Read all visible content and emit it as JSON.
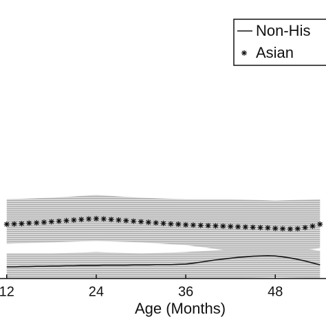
{
  "chart_data": {
    "type": "line",
    "xlabel": "Age (Months)",
    "x": [
      12,
      13,
      14,
      15,
      16,
      17,
      18,
      19,
      20,
      21,
      22,
      23,
      24,
      25,
      26,
      27,
      28,
      29,
      30,
      31,
      32,
      33,
      34,
      35,
      36,
      37,
      38,
      39,
      40,
      41,
      42,
      43,
      44,
      45,
      46,
      47,
      48,
      49,
      50,
      51,
      52,
      53,
      54
    ],
    "series": [
      {
        "name": "Non-His",
        "style": "line",
        "color": "#111111",
        "values": [
          4.2,
          4.2,
          4.3,
          4.3,
          4.4,
          4.4,
          4.5,
          4.5,
          4.6,
          4.6,
          4.7,
          4.7,
          4.7,
          4.8,
          4.8,
          4.8,
          4.8,
          4.9,
          4.9,
          4.9,
          5.0,
          5.0,
          5.0,
          5.1,
          5.2,
          5.5,
          5.9,
          6.3,
          6.7,
          7.0,
          7.3,
          7.6,
          7.8,
          8.0,
          8.1,
          8.2,
          8.1,
          7.8,
          7.4,
          6.9,
          6.3,
          5.6,
          4.9
        ]
      },
      {
        "name": "Asian",
        "style": "star",
        "color": "#111111",
        "values": [
          19.5,
          19.6,
          19.7,
          19.9,
          20.0,
          20.2,
          20.4,
          20.6,
          20.8,
          21.0,
          21.2,
          21.4,
          21.5,
          21.4,
          21.2,
          21.0,
          20.8,
          20.6,
          20.4,
          20.2,
          20.0,
          19.8,
          19.6,
          19.5,
          19.3,
          19.2,
          19.1,
          19.0,
          18.9,
          18.8,
          18.7,
          18.6,
          18.5,
          18.4,
          18.3,
          18.2,
          18.0,
          17.9,
          17.8,
          17.9,
          18.3,
          18.8,
          19.5
        ]
      }
    ],
    "bands": [
      {
        "x": [
          12,
          18,
          24,
          30,
          36,
          42,
          48,
          54
        ],
        "lower": [
          12.5,
          13.0,
          13.5,
          13.0,
          12.0,
          10.0,
          9.0,
          11.0
        ],
        "upper": [
          28.5,
          29.0,
          30.0,
          29.0,
          28.5,
          28.5,
          28.0,
          28.5
        ],
        "color": "#cfcfcf"
      },
      {
        "x": [
          12,
          18,
          24,
          30,
          36,
          42,
          48,
          54
        ],
        "lower": [
          0,
          0,
          0,
          0,
          0,
          0,
          0.5,
          0
        ],
        "upper": [
          9.0,
          9.0,
          9.5,
          9.0,
          9.5,
          10.5,
          12.0,
          10.0
        ],
        "color": "#c4c4c4"
      }
    ],
    "xlim": [
      11.1,
      54.8
    ],
    "ylim": [
      0,
      100
    ],
    "xticks": [
      12,
      24,
      36,
      48
    ],
    "legend": "upper right"
  }
}
